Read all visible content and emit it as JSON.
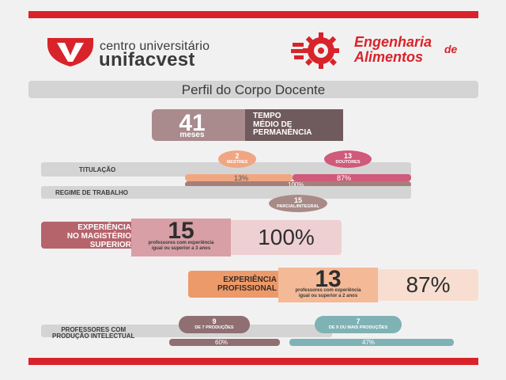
{
  "header": {
    "university_line1": "centro universitário",
    "university_line2": "unifacvest",
    "course_line1": "Engenharia",
    "course_line2": "Alimentos",
    "course_de": "de"
  },
  "title": "Perfil do Corpo Docente",
  "tempo_medio": {
    "value": "41",
    "unit": "meses",
    "label_lines": [
      "TEMPO",
      "MÉDIO DE",
      "PERMANÊNCIA"
    ]
  },
  "titulacao": {
    "label": "TITULAÇÃO",
    "mestres": {
      "count": "2",
      "label": "MESTRES",
      "percent": "13%",
      "fraction": 0.13
    },
    "doutores": {
      "count": "13",
      "label": "DOUTORES",
      "percent": "87%",
      "fraction": 0.87
    },
    "total_percent": "100%"
  },
  "regime": {
    "label": "REGIME DE TRABALHO",
    "count": "15",
    "type": "PARCIAL/INTEGRAL"
  },
  "magisterio": {
    "label_lines": [
      "EXPERIÊNCIA",
      "NO MAGISTÉRIO",
      "SUPERIOR"
    ],
    "count": "15",
    "desc_lines": [
      "professores com experiência",
      "igual ou superior a 3 anos"
    ],
    "percent": "100%"
  },
  "profissional": {
    "label_lines": [
      "EXPERIÊNCIA",
      "PROFISSIONAL"
    ],
    "count": "13",
    "desc_lines": [
      "professores com experiência",
      "igual ou superior a 2 anos"
    ],
    "percent": "87%"
  },
  "producao": {
    "label_lines": [
      "PROFESSORES COM",
      "PRODUÇÃO INTELECTUAL"
    ],
    "left": {
      "count": "9",
      "label": "DE 7 PRODUÇÕES",
      "percent": "60%",
      "fraction": 0.6
    },
    "right": {
      "count": "7",
      "label": "DE 9 OU MAIS PRODUÇÕES",
      "percent": "47%",
      "fraction": 0.47
    }
  },
  "colors": {
    "red": "#d8232a",
    "mauve": "#8f6f72",
    "salmon": "#f0a682",
    "pink": "#cf5a7a",
    "teal": "#7fb2b4",
    "orange": "#e8a27a"
  }
}
